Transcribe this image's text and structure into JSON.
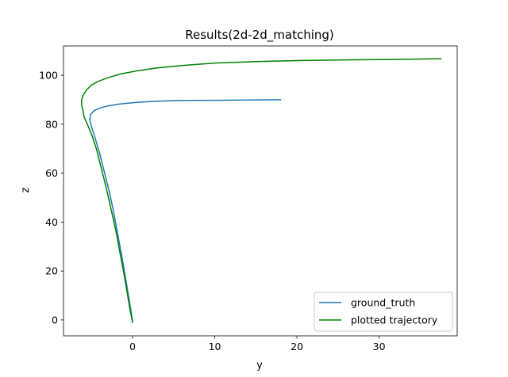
{
  "chart_data": {
    "type": "line",
    "title": "Results(2d-2d_matching)",
    "xlabel": "y",
    "ylabel": "z",
    "xlim": [
      -8.4,
      39.5
    ],
    "ylim": [
      -6.5,
      112
    ],
    "xticks": [
      0,
      10,
      20,
      30
    ],
    "yticks": [
      0,
      20,
      40,
      60,
      80,
      100
    ],
    "grid": false,
    "legend_position": "lower-right",
    "series": [
      {
        "name": "ground_truth",
        "color": "#1f77b4",
        "x": [
          0.0,
          -0.2,
          -0.5,
          -0.9,
          -1.3,
          -1.8,
          -2.3,
          -2.8,
          -3.4,
          -4.0,
          -4.6,
          -5.0,
          -5.2,
          -5.1,
          -4.7,
          -4.0,
          -3.0,
          -1.5,
          0.5,
          3.0,
          6.0,
          10.0,
          14.0,
          18.0
        ],
        "y": [
          -0.5,
          4,
          10,
          18,
          26,
          35,
          44,
          52,
          60,
          68,
          75,
          79,
          82,
          84,
          85.5,
          86.6,
          87.5,
          88.3,
          88.9,
          89.4,
          89.7,
          89.8,
          89.9,
          90.0
        ]
      },
      {
        "name": "plotted trajectory",
        "color": "#008000",
        "x": [
          0.0,
          -0.3,
          -0.6,
          -1.0,
          -1.5,
          -2.0,
          -2.6,
          -3.2,
          -3.8,
          -4.4,
          -5.0,
          -5.5,
          -5.9,
          -6.0,
          -6.2,
          -6.2,
          -6.0,
          -5.6,
          -5.0,
          -4.2,
          -3.0,
          -1.5,
          0.5,
          3.0,
          6.0,
          10.0,
          15.0,
          20.0,
          26.0,
          32.0,
          37.5
        ],
        "y": [
          -1,
          4,
          10,
          18,
          27,
          36,
          45,
          54,
          62,
          70,
          76,
          80,
          83,
          85,
          88,
          90,
          92,
          94,
          96,
          97.5,
          99,
          100.5,
          101.8,
          103,
          104,
          105,
          105.6,
          106,
          106.3,
          106.5,
          106.8
        ]
      }
    ]
  }
}
